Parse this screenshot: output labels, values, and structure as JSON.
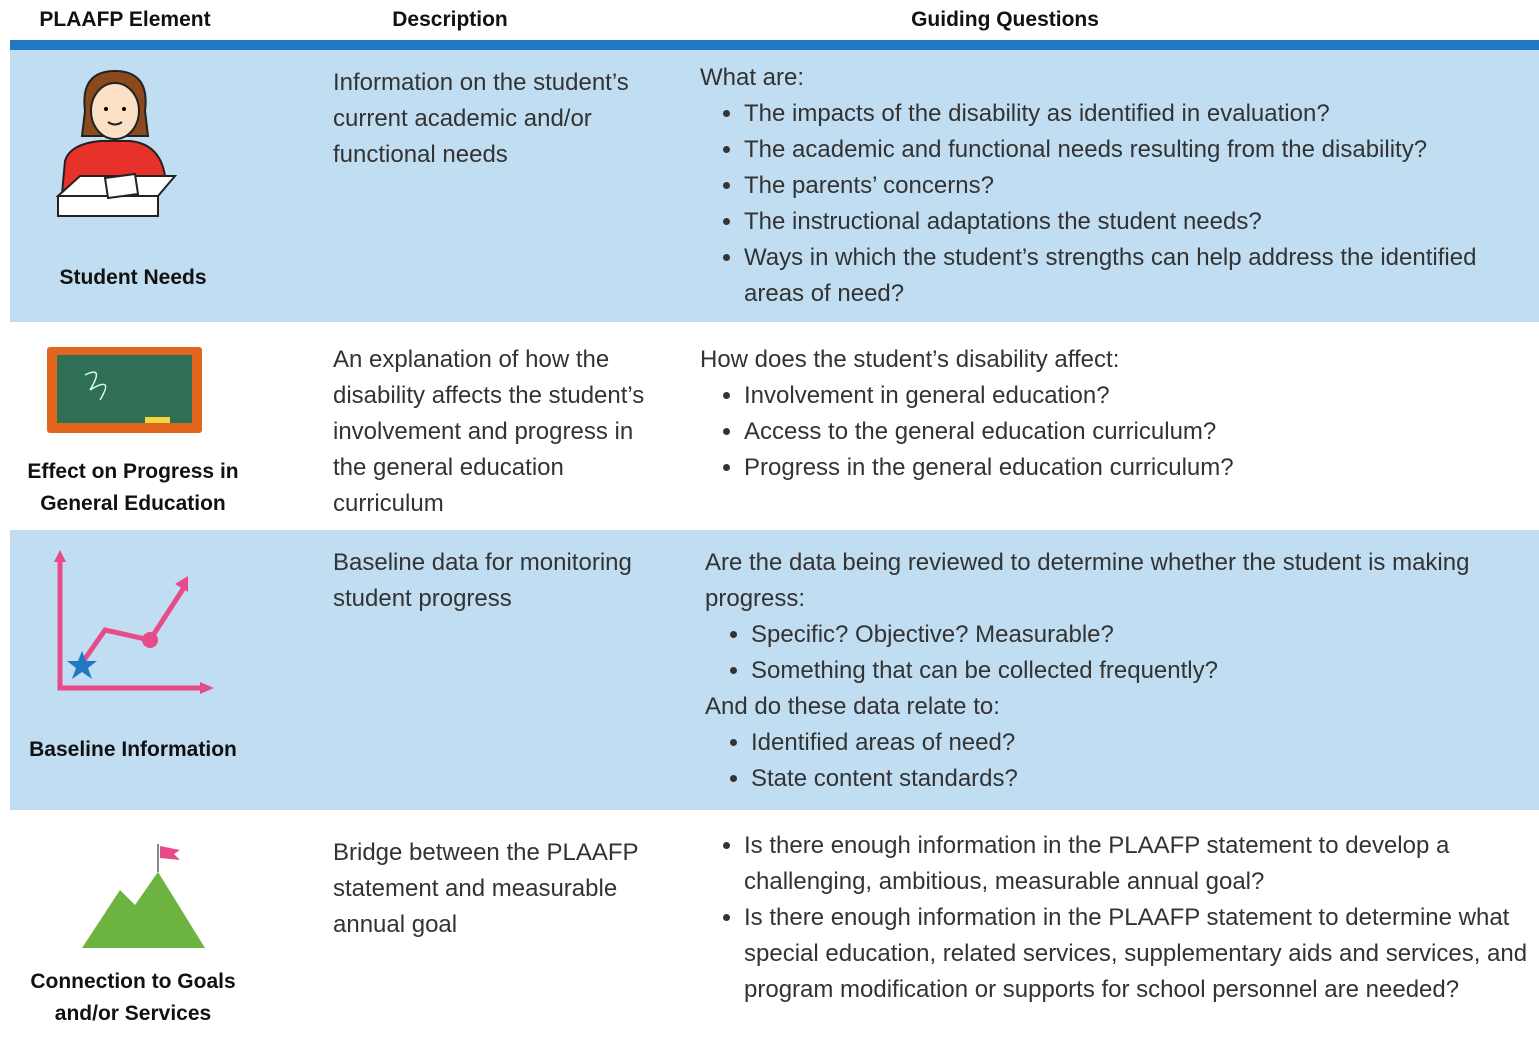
{
  "table": {
    "headers": [
      "PLAAFP Element",
      "Description",
      "Guiding Questions"
    ],
    "rows": [
      {
        "element": "Student Needs",
        "description": "Information on the student’s current academic and/or functional needs",
        "questions": [
          {
            "intro": "What are:",
            "bullets": [
              "The impacts of the disability as identified in evaluation?",
              "The academic and functional needs resulting from the disability?",
              "The parents’ concerns?",
              "The instructional adaptations the student needs?",
              "Ways in which the student’s strengths can help address the identified areas of need?"
            ]
          }
        ]
      },
      {
        "element": "Effect on Progress in General Education",
        "description": "An explanation of how the disability affects the student’s involvement and progress in the general education curriculum",
        "questions": [
          {
            "intro": "How does the student’s disability affect:",
            "bullets": [
              "Involvement in general education?",
              "Access to the general education curriculum?",
              "Progress in the general education curriculum?"
            ]
          }
        ]
      },
      {
        "element": "Baseline Information",
        "description": "Baseline data for monitoring student progress",
        "questions": [
          {
            "intro": "Are the data being reviewed to determine whether the student is making progress:",
            "bullets": [
              "Specific? Objective? Measurable?",
              "Something that can be collected frequently?"
            ]
          },
          {
            "intro": "And do these data relate to:",
            "bullets": [
              "Identified areas of need?",
              "State content standards?"
            ]
          }
        ]
      },
      {
        "element": "Connection to Goals and/or Services",
        "description": "Bridge between the PLAAFP statement and measurable annual goal",
        "questions": [
          {
            "bullets": [
              "Is there enough information in the PLAAFP statement to develop a challenging, ambitious, measurable annual goal?",
              "Is there enough information in the PLAAFP statement to determine what special education, related services, supplementary aids and services, and program modification or supports for school personnel are needed?"
            ]
          }
        ]
      }
    ]
  }
}
